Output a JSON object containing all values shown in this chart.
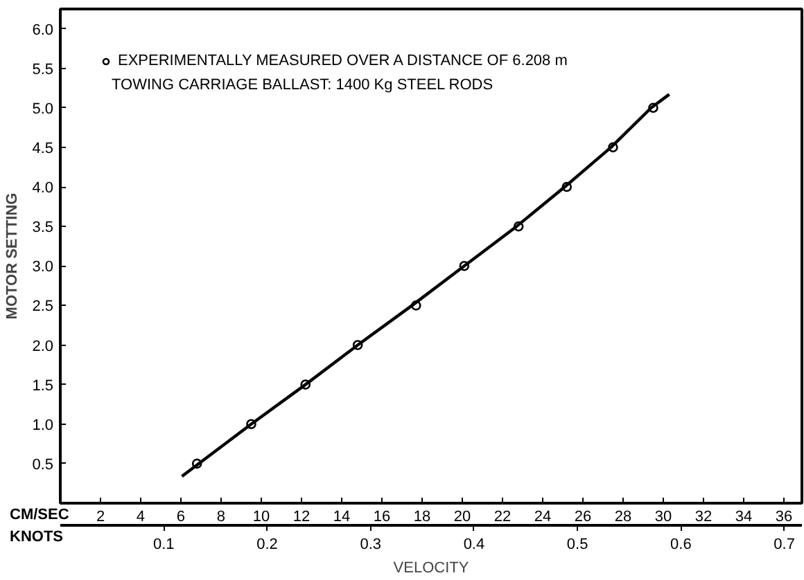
{
  "chart_data": {
    "type": "scatter",
    "ylabel": "MOTOR SETTING",
    "xlabel": "VELOCITY",
    "annotations": [
      "TOWING CARRIAGE BALLAST: 1400 Kg  STEEL RODS",
      "CM/SEC",
      "KNOTS"
    ],
    "series": [
      {
        "name": "EXPERIMENTALLY MEASURED OVER A DISTANCE OF 6.208 m",
        "color": "#000000",
        "marker": "circle",
        "x": [
          6.8,
          9.5,
          12.2,
          14.8,
          17.7,
          20.1,
          22.8,
          25.2,
          27.5,
          29.5
        ],
        "values": [
          0.5,
          1.0,
          1.5,
          2.0,
          2.5,
          3.0,
          3.5,
          4.0,
          4.5,
          5.0
        ]
      },
      {
        "type": "line",
        "color": "#000000",
        "line_style": "solid",
        "x": [
          6.05,
          9.5,
          12.2,
          14.8,
          17.5,
          20.1,
          22.7,
          25.1,
          27.4,
          29.4,
          30.3
        ],
        "values": [
          0.34,
          1.0,
          1.5,
          2.0,
          2.5,
          3.0,
          3.5,
          4.0,
          4.5,
          5.0,
          5.17
        ]
      }
    ],
    "xlim": [
      0,
      36.9
    ],
    "xticks": [
      2,
      4,
      6,
      8,
      10,
      12,
      14,
      16,
      18,
      20,
      22,
      24,
      26,
      28,
      30,
      32,
      34,
      36
    ],
    "x2lim": [
      0,
      0.717
    ],
    "x2ticks": [
      0.1,
      0.2,
      0.3,
      0.4,
      0.5,
      0.6,
      0.7
    ],
    "ylim": [
      0,
      6.25
    ],
    "yticks": [
      0.5,
      {
        "value": 1,
        "label": "1.0"
      },
      1.5,
      {
        "value": 2,
        "label": "2.0"
      },
      2.5,
      {
        "value": 3,
        "label": "3.0"
      },
      3.5,
      {
        "value": 4,
        "label": "4.0"
      },
      4.5,
      {
        "value": 5,
        "label": "5.0"
      },
      5.5,
      {
        "value": 6,
        "label": "6.0"
      }
    ],
    "grid": false,
    "legend": "top left"
  }
}
